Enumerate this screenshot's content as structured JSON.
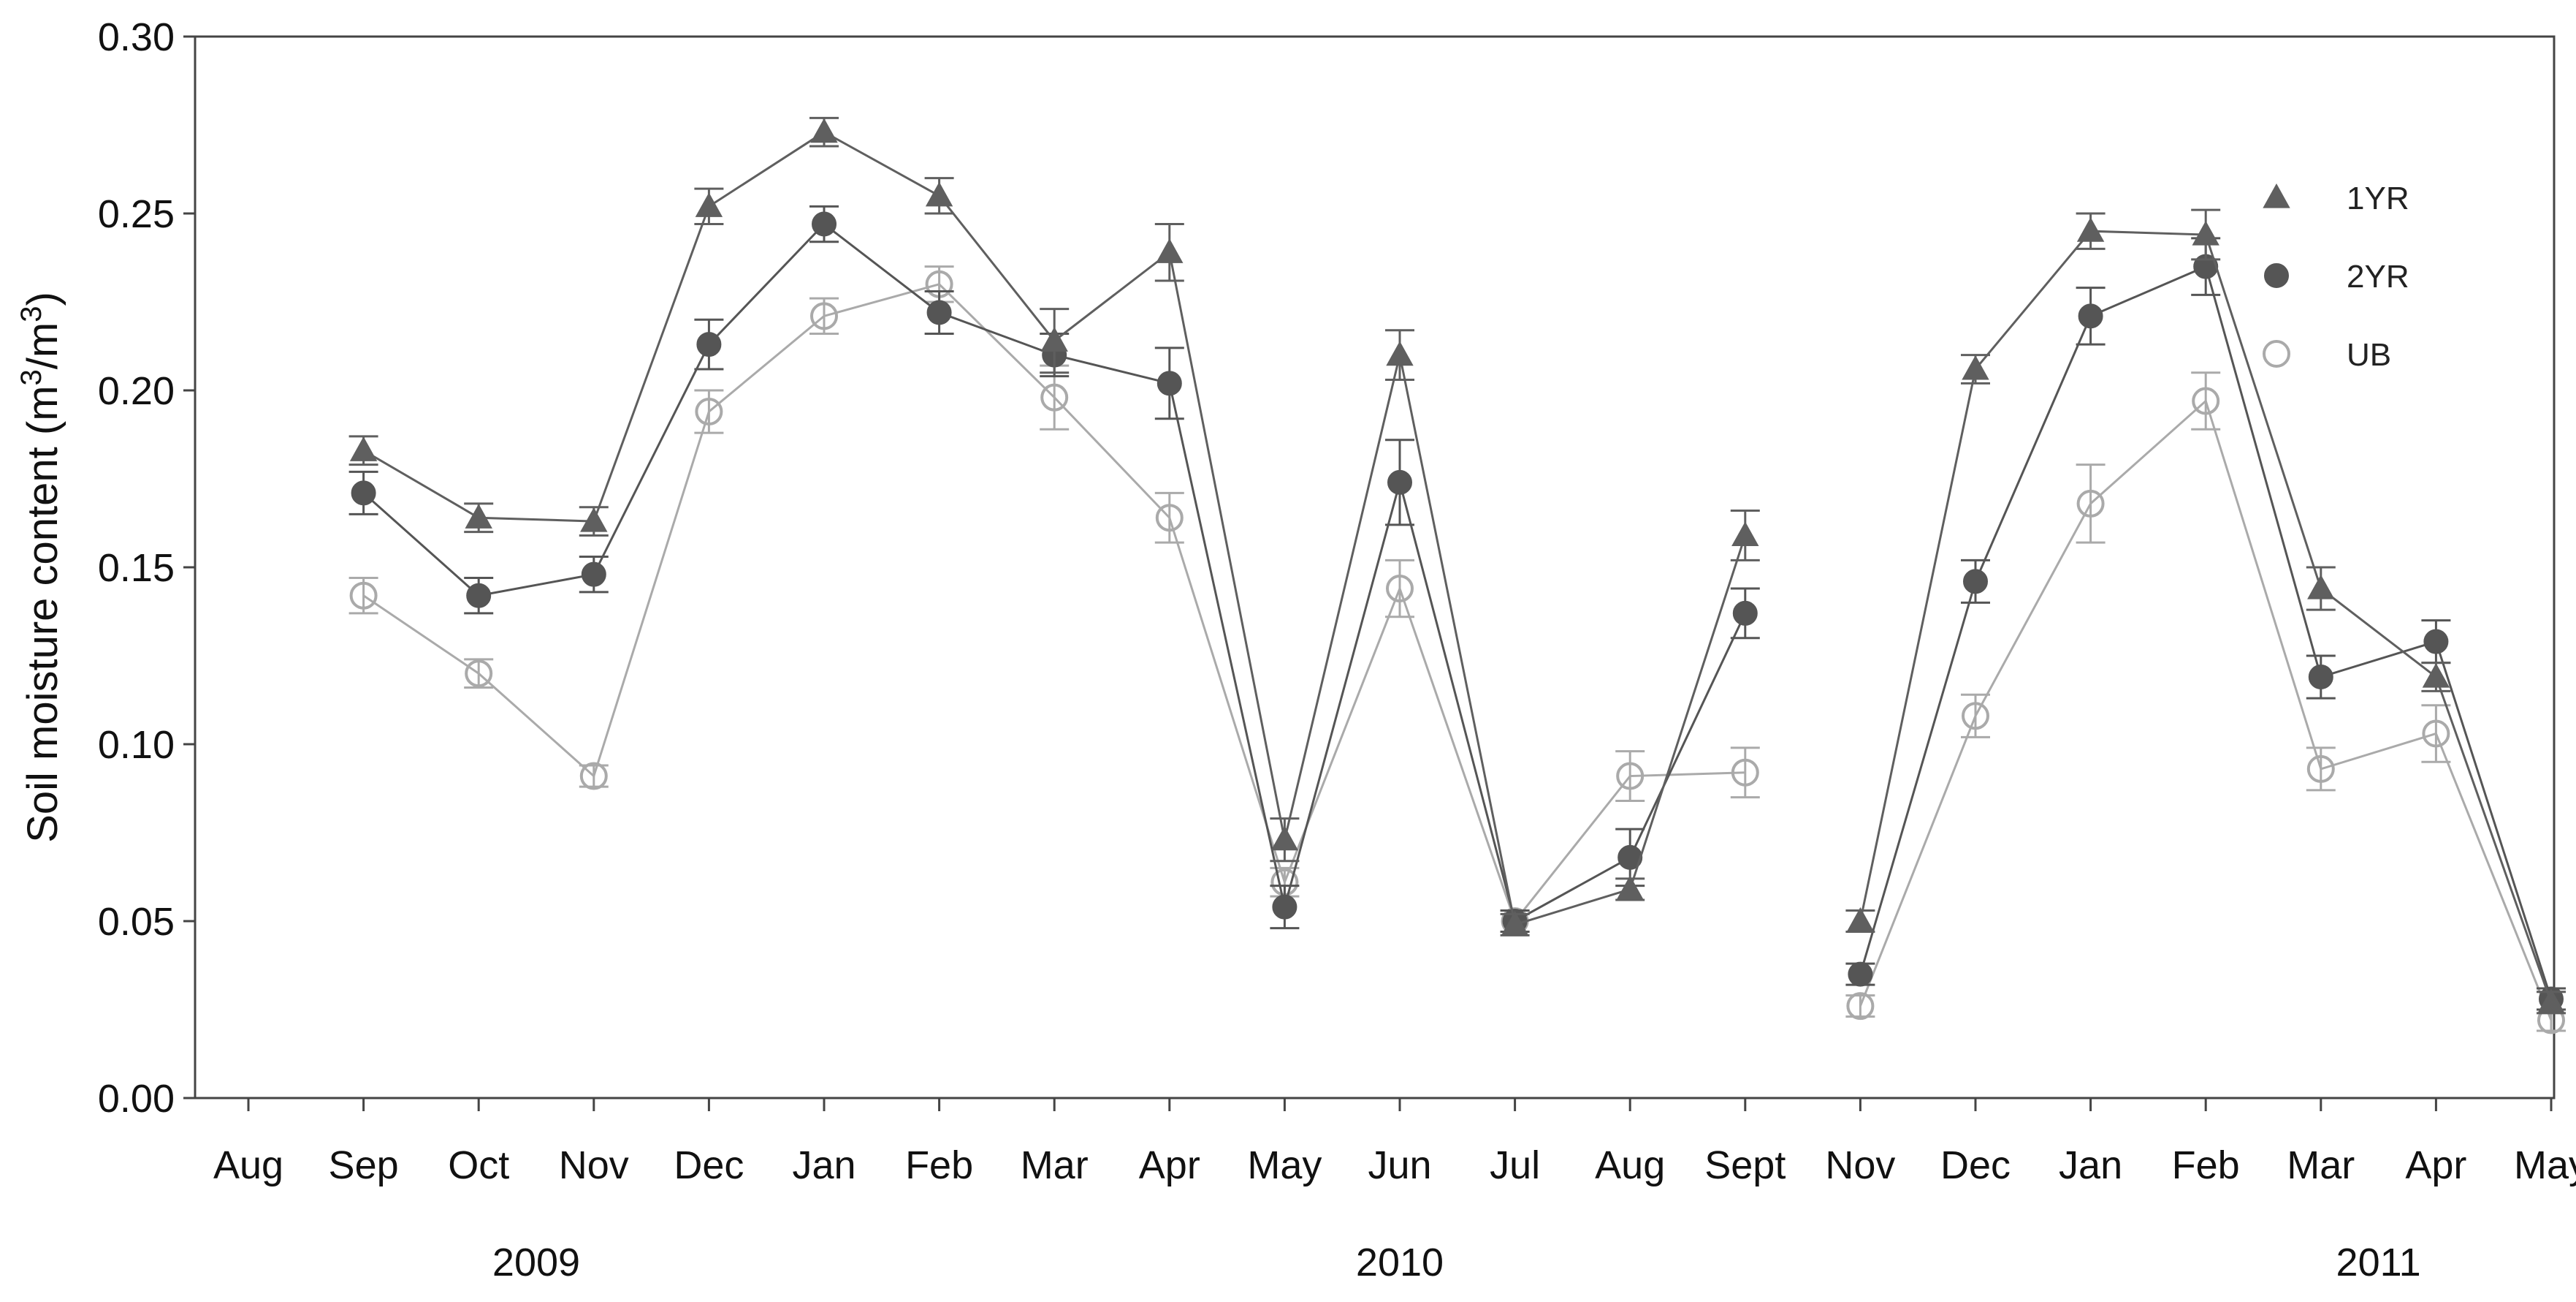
{
  "chart_data": {
    "type": "line",
    "title": "",
    "ylabel": "Soil moisture content (m³/m³)",
    "ylabel_parts": {
      "prefix": "Soil moisture content  (m",
      "sup1": "3",
      "mid": "/m",
      "sup2": "3",
      "suffix": ")"
    },
    "xlabel": "",
    "ylim": [
      0,
      0.3
    ],
    "yticks": [
      "0.00",
      "0.05",
      "0.10",
      "0.15",
      "0.20",
      "0.25",
      "0.30"
    ],
    "categories": [
      "Aug",
      "Sep",
      "Oct",
      "Nov",
      "Dec",
      "Jan",
      "Feb",
      "Mar",
      "Apr",
      "May",
      "Jun",
      "Jul",
      "Aug",
      "Sept",
      "Nov",
      "Dec",
      "Jan",
      "Feb",
      "Mar",
      "Apr",
      "May"
    ],
    "years": [
      {
        "label": "2009",
        "center_index": 2.5
      },
      {
        "label": "2010",
        "center_index": 10
      },
      {
        "label": "2011",
        "center_index": 18.5
      }
    ],
    "grid": false,
    "legend_position": "top-right",
    "series": [
      {
        "name": "1YR",
        "marker": "triangle",
        "color": "#5f5f5f",
        "segments": [
          {
            "start_index": 1,
            "values": [
              0.183,
              0.164,
              0.163,
              0.252,
              0.273,
              0.255,
              0.214,
              0.239,
              0.073,
              0.21,
              0.049,
              0.059,
              0.159
            ]
          },
          {
            "start_index": 14,
            "values": [
              0.05,
              0.206,
              0.245,
              0.244,
              0.144,
              0.119,
              0.027
            ]
          }
        ],
        "errors": [
          [
            0.004,
            0.004,
            0.004,
            0.005,
            0.004,
            0.005,
            0.009,
            0.008,
            0.006,
            0.007,
            0.003,
            0.003,
            0.007
          ],
          [
            0.003,
            0.004,
            0.005,
            0.007,
            0.006,
            0.004,
            0.003
          ]
        ]
      },
      {
        "name": "2YR",
        "marker": "circle-filled",
        "color": "#555555",
        "segments": [
          {
            "start_index": 1,
            "values": [
              0.171,
              0.142,
              0.148,
              0.213,
              0.247,
              0.222,
              0.21,
              0.202,
              0.054,
              0.174,
              0.05,
              0.068,
              0.137
            ]
          },
          {
            "start_index": 14,
            "values": [
              0.035,
              0.146,
              0.221,
              0.235,
              0.119,
              0.129,
              0.028
            ]
          }
        ],
        "errors": [
          [
            0.006,
            0.005,
            0.005,
            0.007,
            0.005,
            0.006,
            0.006,
            0.01,
            0.006,
            0.012,
            0.003,
            0.008,
            0.007
          ],
          [
            0.003,
            0.006,
            0.008,
            0.008,
            0.006,
            0.006,
            0.003
          ]
        ]
      },
      {
        "name": "UB",
        "marker": "circle-open",
        "color": "#aaaaaa",
        "segments": [
          {
            "start_index": 1,
            "values": [
              0.142,
              0.12,
              0.091,
              0.194,
              0.221,
              0.23,
              0.198,
              0.164,
              0.061,
              0.144,
              0.05,
              0.091,
              0.092
            ]
          },
          {
            "start_index": 14,
            "values": [
              0.026,
              0.108,
              0.168,
              0.197,
              0.093,
              0.103,
              0.022
            ]
          }
        ],
        "errors": [
          [
            0.005,
            0.004,
            0.003,
            0.006,
            0.005,
            0.005,
            0.009,
            0.007,
            0.004,
            0.008,
            0.003,
            0.007,
            0.007
          ],
          [
            0.003,
            0.006,
            0.011,
            0.008,
            0.006,
            0.008,
            0.003
          ]
        ]
      }
    ]
  }
}
